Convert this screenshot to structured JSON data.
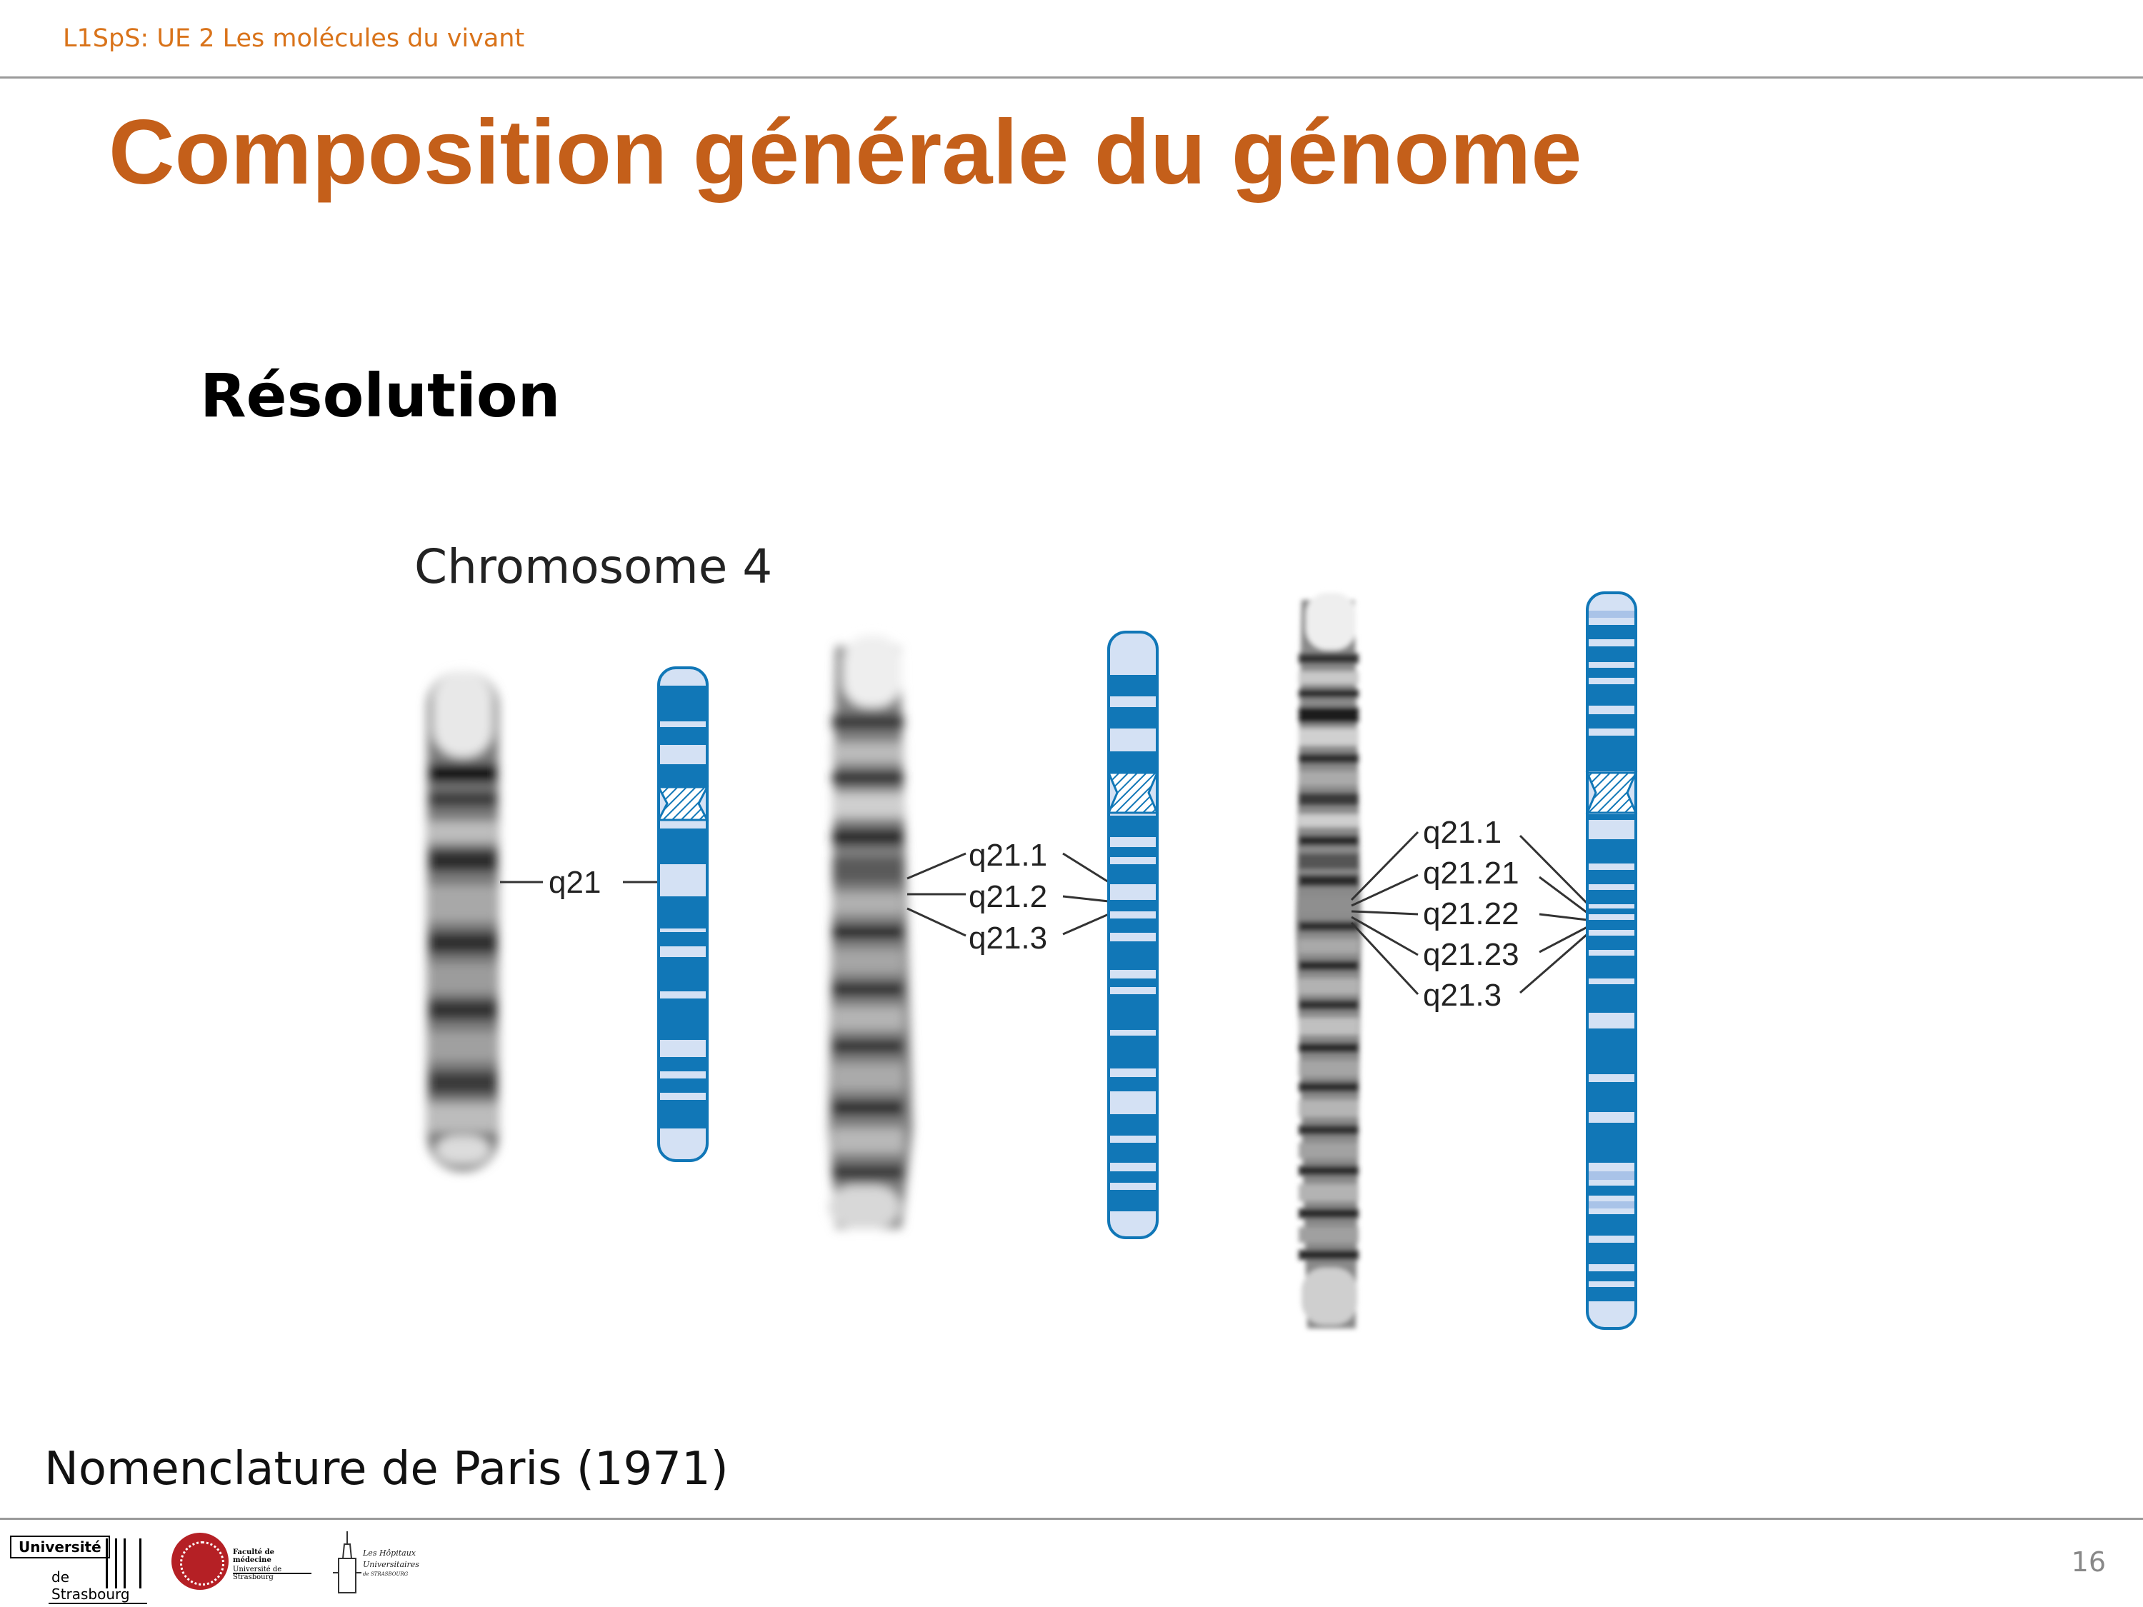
{
  "header": {
    "course": "L1SpS: UE 2 Les molécules du vivant"
  },
  "slide": {
    "title": "Composition générale du génome",
    "subtitle": "Résolution",
    "page_number": "16",
    "footer_note": "Nomenclature de Paris (1971)"
  },
  "figure": {
    "caption": "Chromosome 4",
    "ideogram_color": "#1177b7",
    "ideogram_light": "#d4e1f4",
    "levels": [
      {
        "name": "low-resolution",
        "labels": [
          "q21"
        ]
      },
      {
        "name": "medium-resolution",
        "labels": [
          "q21.1",
          "q21.2",
          "q21.3"
        ]
      },
      {
        "name": "high-resolution",
        "labels": [
          "q21.1",
          "q21.21",
          "q21.22",
          "q21.23",
          "q21.3"
        ]
      }
    ]
  },
  "logos": {
    "universite_top": "Université",
    "universite_bottom": "de Strasbourg",
    "faculte_line1": "Faculté de médecine",
    "faculte_line2": "Université de Strasbourg",
    "hopitaux_line1": "Les Hôpitaux",
    "hopitaux_line2": "Universitaires",
    "hopitaux_line3": "de STRASBOURG"
  },
  "colors": {
    "accent": "#c45f1a",
    "header": "#d9731a"
  }
}
